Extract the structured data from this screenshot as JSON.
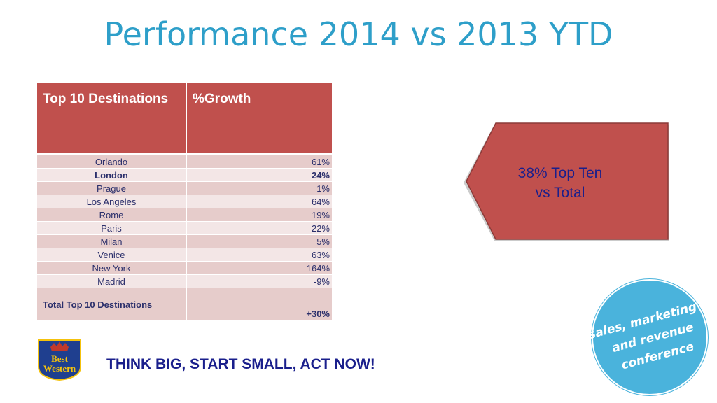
{
  "slide": {
    "title": "Performance 2014 vs 2013 YTD",
    "tagline": "THINK BIG, START SMALL, ACT NOW!"
  },
  "table": {
    "headers": [
      "Top 10 Destinations",
      "%Growth"
    ],
    "rows": [
      {
        "destination": "Orlando",
        "growth": "61%"
      },
      {
        "destination": "London",
        "growth": "24%"
      },
      {
        "destination": "Prague",
        "growth": "1%"
      },
      {
        "destination": "Los Angeles",
        "growth": "64%"
      },
      {
        "destination": "Rome",
        "growth": "19%"
      },
      {
        "destination": "Paris",
        "growth": "22%"
      },
      {
        "destination": "Milan",
        "growth": "5%"
      },
      {
        "destination": "Venice",
        "growth": "63%"
      },
      {
        "destination": "New York",
        "growth": "164%"
      },
      {
        "destination": "Madrid",
        "growth": "-9%"
      }
    ],
    "total": {
      "label": "Total  Top 10 Destinations",
      "value": "+30%"
    }
  },
  "callout": {
    "line1": "38% Top Ten",
    "line2": "vs  Total"
  },
  "logo": {
    "line1": "Best",
    "line2": "Western"
  },
  "badge": {
    "line1": "sales, marketing",
    "line2": "and revenue",
    "line3": "conference"
  },
  "colors": {
    "title": "#2e9fc9",
    "header_fill": "#c0504d",
    "row_dark": "#e6cccb",
    "row_light": "#f3e6e6",
    "navy_text": "#1a1f8c",
    "badge_fill": "#4ab3dc",
    "logo_fill": "#1f3f8f",
    "logo_accent": "#f4c20d"
  }
}
